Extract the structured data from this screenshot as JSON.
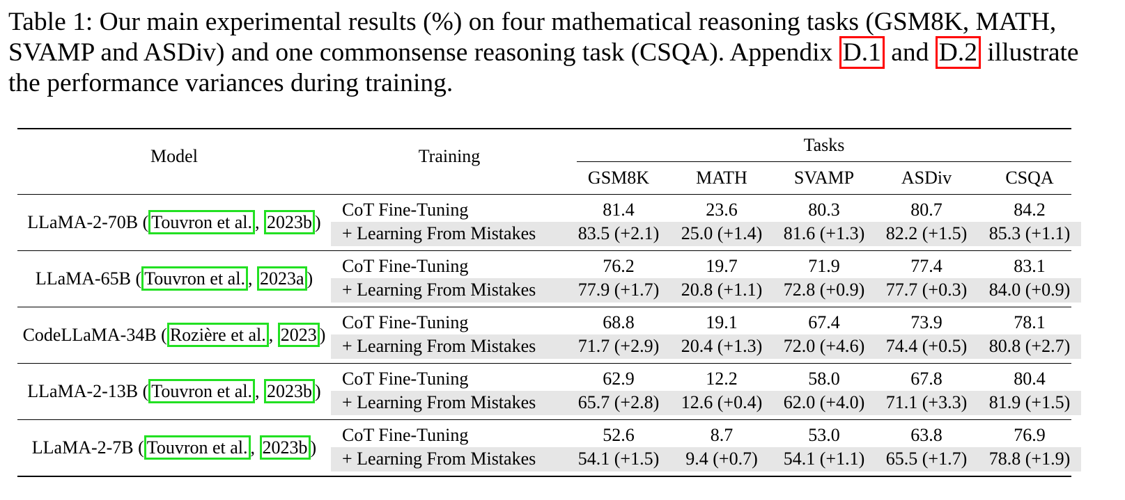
{
  "caption": [
    "Table 1: Our main experimental results (%) on four mathematical reasoning tasks (GSM8K, MATH, SVAMP and ASDiv) and one commonsense reasoning task (CSQA). Appendix ",
    "D.1",
    " and ",
    "D.2",
    " illustrate the performance variances during training."
  ],
  "table": {
    "header": {
      "model": "Model",
      "training": "Training",
      "tasks": "Tasks",
      "task_names": [
        "GSM8K",
        "MATH",
        "SVAMP",
        "ASDiv",
        "CSQA"
      ]
    },
    "groups": [
      {
        "model": [
          "LLaMA-2-70B (",
          "Touvron et al.",
          ", ",
          "2023b",
          ")"
        ],
        "rows": [
          {
            "training": "CoT Fine-Tuning",
            "values": [
              "81.4",
              "23.6",
              "80.3",
              "80.7",
              "84.2"
            ]
          },
          {
            "training": "+ Learning From Mistakes",
            "values": [
              "83.5 (+2.1)",
              "25.0 (+1.4)",
              "81.6 (+1.3)",
              "82.2 (+1.5)",
              "85.3 (+1.1)"
            ]
          }
        ]
      },
      {
        "model": [
          "LLaMA-65B (",
          "Touvron et al.",
          ", ",
          "2023a",
          ")"
        ],
        "rows": [
          {
            "training": "CoT Fine-Tuning",
            "values": [
              "76.2",
              "19.7",
              "71.9",
              "77.4",
              "83.1"
            ]
          },
          {
            "training": "+ Learning From Mistakes",
            "values": [
              "77.9 (+1.7)",
              "20.8 (+1.1)",
              "72.8 (+0.9)",
              "77.7 (+0.3)",
              "84.0 (+0.9)"
            ]
          }
        ]
      },
      {
        "model": [
          "CodeLLaMA-34B (",
          "Rozière et al.",
          ", ",
          "2023",
          ")"
        ],
        "rows": [
          {
            "training": "CoT Fine-Tuning",
            "values": [
              "68.8",
              "19.1",
              "67.4",
              "73.9",
              "78.1"
            ]
          },
          {
            "training": "+ Learning From Mistakes",
            "values": [
              "71.7 (+2.9)",
              "20.4 (+1.3)",
              "72.0 (+4.6)",
              "74.4 (+0.5)",
              "80.8 (+2.7)"
            ]
          }
        ]
      },
      {
        "model": [
          "LLaMA-2-13B (",
          "Touvron et al.",
          ", ",
          "2023b",
          ")"
        ],
        "rows": [
          {
            "training": "CoT Fine-Tuning",
            "values": [
              "62.9",
              "12.2",
              "58.0",
              "67.8",
              "80.4"
            ]
          },
          {
            "training": "+ Learning From Mistakes",
            "values": [
              "65.7 (+2.8)",
              "12.6 (+0.4)",
              "62.0 (+4.0)",
              "71.1 (+3.3)",
              "81.9 (+1.5)"
            ]
          }
        ]
      },
      {
        "model": [
          "LLaMA-2-7B (",
          "Touvron et al.",
          ", ",
          "2023b",
          ")"
        ],
        "rows": [
          {
            "training": "CoT Fine-Tuning",
            "values": [
              "52.6",
              "8.7",
              "53.0",
              "63.8",
              "76.9"
            ]
          },
          {
            "training": "+ Learning From Mistakes",
            "values": [
              "54.1 (+1.5)",
              "9.4 (+0.7)",
              "54.1 (+1.1)",
              "65.5 (+1.7)",
              "78.8 (+1.9)"
            ]
          }
        ]
      }
    ]
  }
}
